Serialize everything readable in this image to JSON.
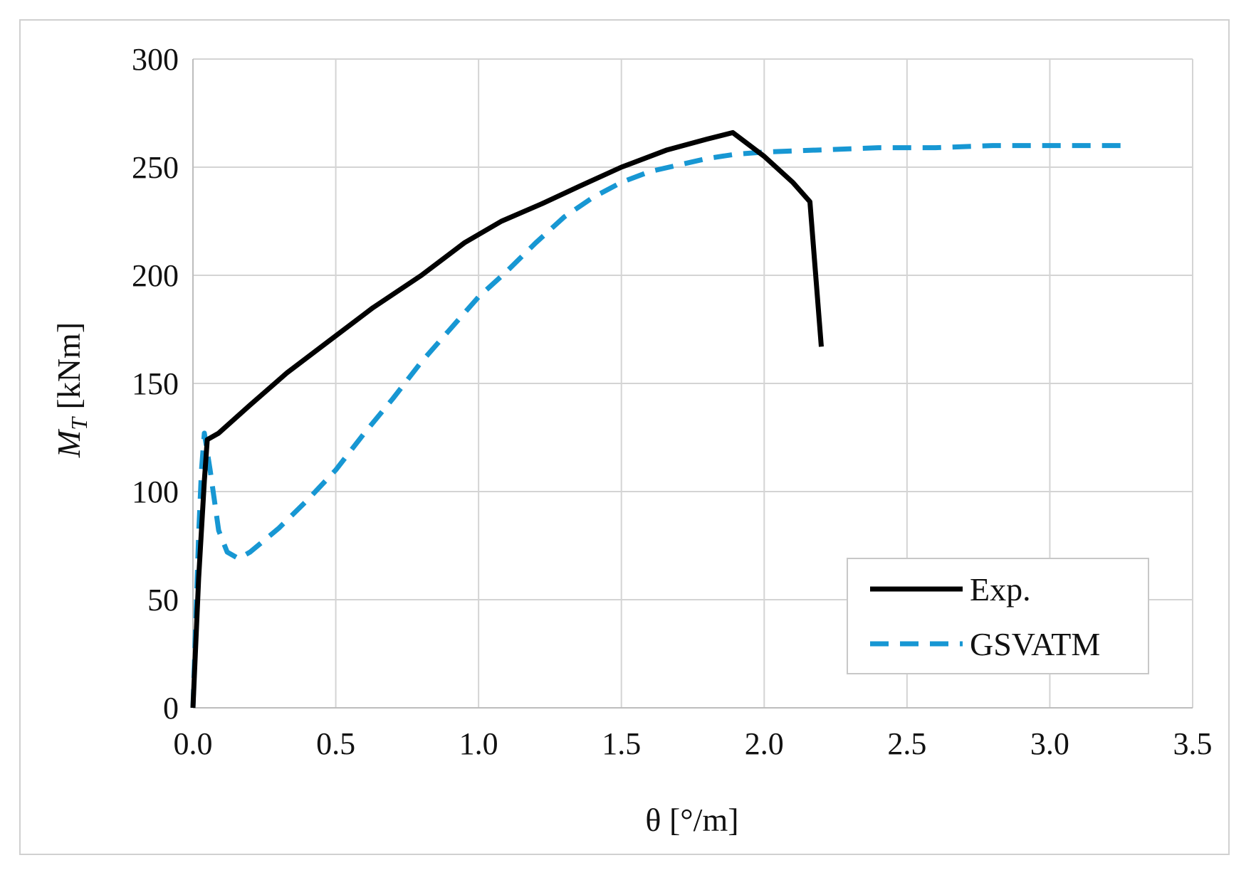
{
  "chart_data": {
    "type": "line",
    "title": "",
    "xlabel": "θ [°/m]",
    "ylabel_main": "M",
    "ylabel_sub": "T",
    "ylabel_unit": " [kNm]",
    "xlim": [
      0,
      3.5
    ],
    "ylim": [
      0,
      300
    ],
    "xticks": [
      0.0,
      0.5,
      1.0,
      1.5,
      2.0,
      2.5,
      3.0,
      3.5
    ],
    "xtick_labels": [
      "0.0",
      "0.5",
      "1.0",
      "1.5",
      "2.0",
      "2.5",
      "3.0",
      "3.5"
    ],
    "yticks": [
      0,
      50,
      100,
      150,
      200,
      250,
      300
    ],
    "ytick_labels": [
      "0",
      "50",
      "100",
      "150",
      "200",
      "250",
      "300"
    ],
    "grid": true,
    "legend_position": "bottom-right",
    "series": [
      {
        "name": "Exp.",
        "color": "#000000",
        "style": "solid",
        "x": [
          0.0,
          0.02,
          0.04,
          0.05,
          0.09,
          0.2,
          0.33,
          0.48,
          0.63,
          0.8,
          0.95,
          1.08,
          1.22,
          1.35,
          1.5,
          1.66,
          1.8,
          1.89,
          2.0,
          2.1,
          2.16,
          2.2
        ],
        "y": [
          0,
          60,
          105,
          124,
          127,
          140,
          155,
          170,
          185,
          200,
          215,
          225,
          233,
          241,
          250,
          258,
          263,
          266,
          255,
          243,
          234,
          167
        ]
      },
      {
        "name": "GSVATM",
        "color": "#1797D3",
        "style": "dashed",
        "x": [
          0.0,
          0.01,
          0.02,
          0.03,
          0.04,
          0.06,
          0.09,
          0.12,
          0.16,
          0.2,
          0.3,
          0.4,
          0.5,
          0.6,
          0.7,
          0.8,
          0.9,
          1.0,
          1.1,
          1.2,
          1.3,
          1.4,
          1.5,
          1.6,
          1.7,
          1.8,
          1.9,
          2.0,
          2.2,
          2.4,
          2.6,
          2.8,
          3.0,
          3.25
        ],
        "y": [
          0,
          40,
          80,
          110,
          127,
          110,
          82,
          72,
          69,
          72,
          83,
          96,
          110,
          127,
          143,
          160,
          175,
          190,
          202,
          215,
          227,
          236,
          243,
          248,
          251,
          254,
          256,
          257,
          258,
          259,
          259,
          260,
          260,
          260
        ]
      }
    ]
  }
}
